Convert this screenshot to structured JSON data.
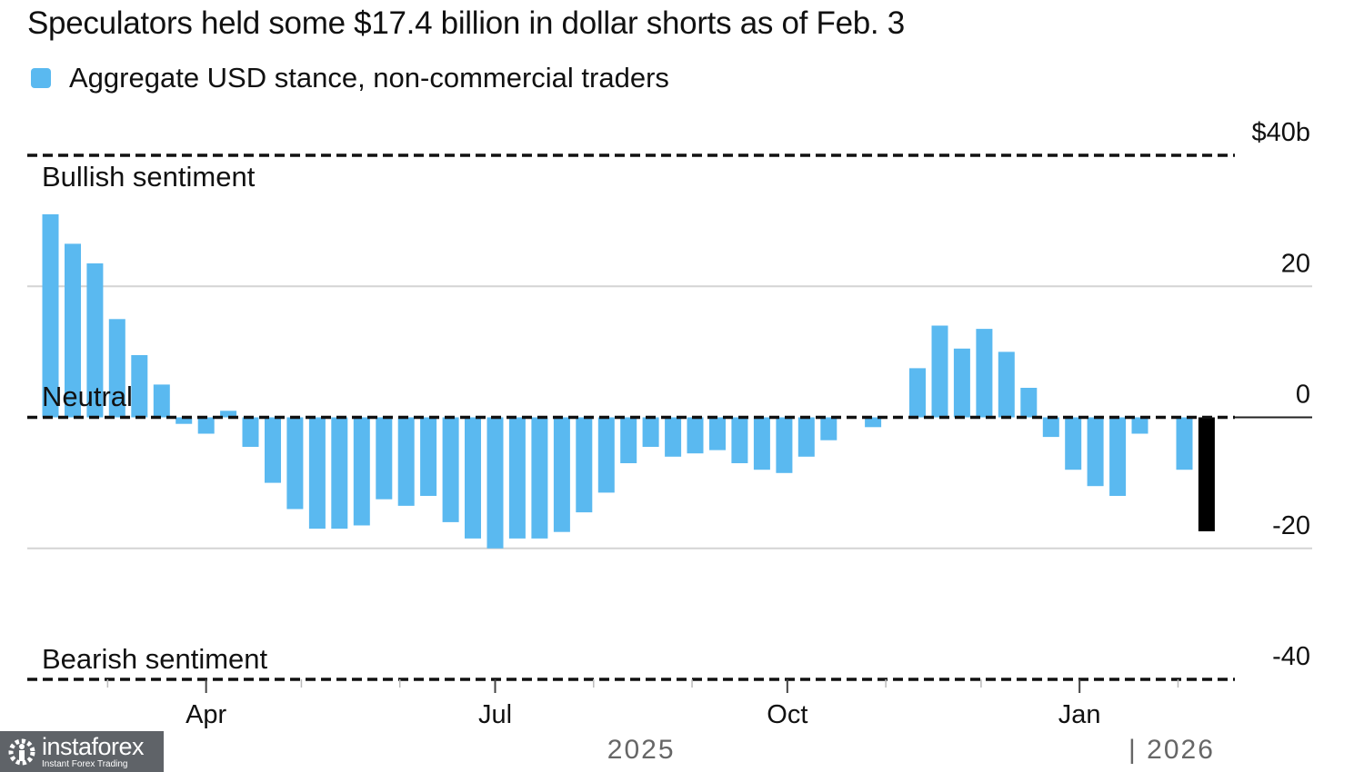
{
  "chart_data": {
    "type": "bar",
    "title": "Speculators held some $17.4 billion in dollar shorts as of Feb. 3",
    "series": [
      {
        "name": "Aggregate USD stance, non-commercial traders",
        "color": "#5ab9f0",
        "highlight_color": "#000000",
        "values": [
          31,
          26.5,
          23.5,
          15,
          9.5,
          5,
          -1,
          -2.5,
          1,
          -4.5,
          -10,
          -14,
          -17,
          -17,
          -16.5,
          -12.5,
          -13.5,
          -12,
          -16,
          -18.5,
          -20,
          -18.5,
          -18.5,
          -17.5,
          -14.5,
          -11.5,
          -7,
          -4.5,
          -6,
          -5.5,
          -5,
          -7,
          -8,
          -8.5,
          -6,
          -3.5,
          null,
          -1.5,
          null,
          7.5,
          14,
          10.5,
          13.5,
          10,
          4.5,
          -3,
          -8,
          -10.5,
          -12,
          -2.5,
          null,
          -8,
          -17.4
        ]
      }
    ],
    "x_start": "2025-02-11",
    "x_interval_days": 7,
    "ylim": [
      -40,
      40
    ],
    "yticks": [
      {
        "value": 40,
        "label": "$40b"
      },
      {
        "value": 20,
        "label": "20"
      },
      {
        "value": 0,
        "label": "0"
      },
      {
        "value": -20,
        "label": "-20"
      },
      {
        "value": -40,
        "label": "-40"
      }
    ],
    "xticks": [
      {
        "date": "2025-04-01",
        "label": "Apr"
      },
      {
        "date": "2025-07-01",
        "label": "Jul"
      },
      {
        "date": "2025-10-01",
        "label": "Oct"
      },
      {
        "date": "2026-01-01",
        "label": "Jan"
      }
    ],
    "minor_ticks": [
      "2025-03-01",
      "2025-05-01",
      "2025-06-01",
      "2025-08-01",
      "2025-09-01",
      "2025-11-01",
      "2025-12-01",
      "2026-02-01"
    ],
    "year_labels": [
      {
        "label": "2025",
        "date": "2025-08-16"
      },
      {
        "label": "| 2026",
        "date": "2026-01-30"
      }
    ],
    "annotations": [
      {
        "label": "Bullish sentiment",
        "value": 40
      },
      {
        "label": "Neutral",
        "value": 0
      },
      {
        "label": "Bearish sentiment",
        "value": -40
      }
    ],
    "grid": true,
    "legend": "top-left"
  },
  "watermark": {
    "brand": "instaforex",
    "tagline": "Instant Forex Trading"
  }
}
